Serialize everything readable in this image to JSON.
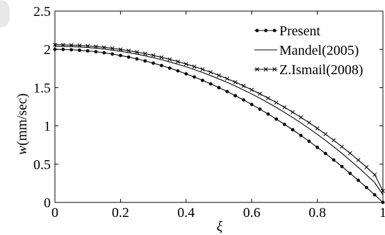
{
  "chart_data": {
    "type": "line",
    "title": "",
    "xlabel": "ξ",
    "ylabel_italic": "w",
    "ylabel_unit": "(mm/sec)",
    "xlim": [
      0,
      1
    ],
    "ylim": [
      0,
      2.5
    ],
    "xticks": [
      0,
      0.2,
      0.4,
      0.6,
      0.8,
      1
    ],
    "xtick_labels": [
      "0",
      "0.2",
      "0.4",
      "0.6",
      "0.8",
      "1"
    ],
    "yticks": [
      0,
      0.5,
      1,
      1.5,
      2,
      2.5
    ],
    "ytick_labels": [
      "0",
      "0.5",
      "1",
      "1.5",
      "2",
      "2.5"
    ],
    "grid": false,
    "legend_position": "top-right",
    "series": [
      {
        "name": "Present",
        "marker": "dot",
        "color": "#000000",
        "x": [
          0,
          0.025,
          0.05,
          0.075,
          0.1,
          0.125,
          0.15,
          0.175,
          0.2,
          0.225,
          0.25,
          0.275,
          0.3,
          0.325,
          0.35,
          0.375,
          0.4,
          0.425,
          0.45,
          0.475,
          0.5,
          0.525,
          0.55,
          0.575,
          0.6,
          0.625,
          0.65,
          0.675,
          0.7,
          0.725,
          0.75,
          0.775,
          0.8,
          0.825,
          0.85,
          0.875,
          0.9,
          0.925,
          0.95,
          0.975,
          1
        ],
        "y": [
          2.0,
          1.999,
          1.995,
          1.989,
          1.98,
          1.969,
          1.955,
          1.939,
          1.92,
          1.899,
          1.875,
          1.849,
          1.82,
          1.789,
          1.755,
          1.719,
          1.68,
          1.639,
          1.595,
          1.549,
          1.5,
          1.449,
          1.395,
          1.339,
          1.28,
          1.219,
          1.155,
          1.089,
          1.02,
          0.949,
          0.875,
          0.799,
          0.72,
          0.639,
          0.555,
          0.469,
          0.38,
          0.289,
          0.195,
          0.099,
          0.0
        ]
      },
      {
        "name": "Mandel(2005)",
        "marker": "none",
        "color": "#000000",
        "x": [
          0,
          0.025,
          0.05,
          0.075,
          0.1,
          0.125,
          0.15,
          0.175,
          0.2,
          0.225,
          0.25,
          0.275,
          0.3,
          0.325,
          0.35,
          0.375,
          0.4,
          0.425,
          0.45,
          0.475,
          0.5,
          0.525,
          0.55,
          0.575,
          0.6,
          0.625,
          0.65,
          0.675,
          0.7,
          0.725,
          0.75,
          0.775,
          0.8,
          0.825,
          0.85,
          0.875,
          0.9,
          0.925,
          0.95,
          0.975,
          1
        ],
        "y": [
          2.04,
          2.039,
          2.036,
          2.031,
          2.024,
          2.015,
          2.004,
          1.99,
          1.975,
          1.957,
          1.938,
          1.916,
          1.891,
          1.865,
          1.836,
          1.805,
          1.772,
          1.736,
          1.698,
          1.657,
          1.614,
          1.569,
          1.521,
          1.47,
          1.417,
          1.361,
          1.302,
          1.241,
          1.176,
          1.109,
          1.039,
          0.966,
          0.889,
          0.81,
          0.727,
          0.64,
          0.55,
          0.457,
          0.36,
          0.259,
          0.1
        ]
      },
      {
        "name": "Z.Ismail(2008)",
        "marker": "x",
        "color": "#000000",
        "x": [
          0,
          0.025,
          0.05,
          0.075,
          0.1,
          0.125,
          0.15,
          0.175,
          0.2,
          0.225,
          0.25,
          0.275,
          0.3,
          0.325,
          0.35,
          0.375,
          0.4,
          0.425,
          0.45,
          0.475,
          0.5,
          0.525,
          0.55,
          0.575,
          0.6,
          0.625,
          0.65,
          0.675,
          0.7,
          0.725,
          0.75,
          0.775,
          0.8,
          0.825,
          0.85,
          0.875,
          0.9,
          0.925,
          0.95,
          0.975,
          1
        ],
        "y": [
          2.06,
          2.059,
          2.056,
          2.051,
          2.045,
          2.036,
          2.026,
          2.013,
          1.999,
          1.983,
          1.964,
          1.944,
          1.921,
          1.896,
          1.869,
          1.84,
          1.809,
          1.775,
          1.739,
          1.701,
          1.66,
          1.617,
          1.571,
          1.523,
          1.472,
          1.419,
          1.363,
          1.305,
          1.243,
          1.179,
          1.112,
          1.042,
          0.968,
          0.892,
          0.812,
          0.729,
          0.643,
          0.553,
          0.46,
          0.363,
          0.15
        ]
      }
    ]
  }
}
